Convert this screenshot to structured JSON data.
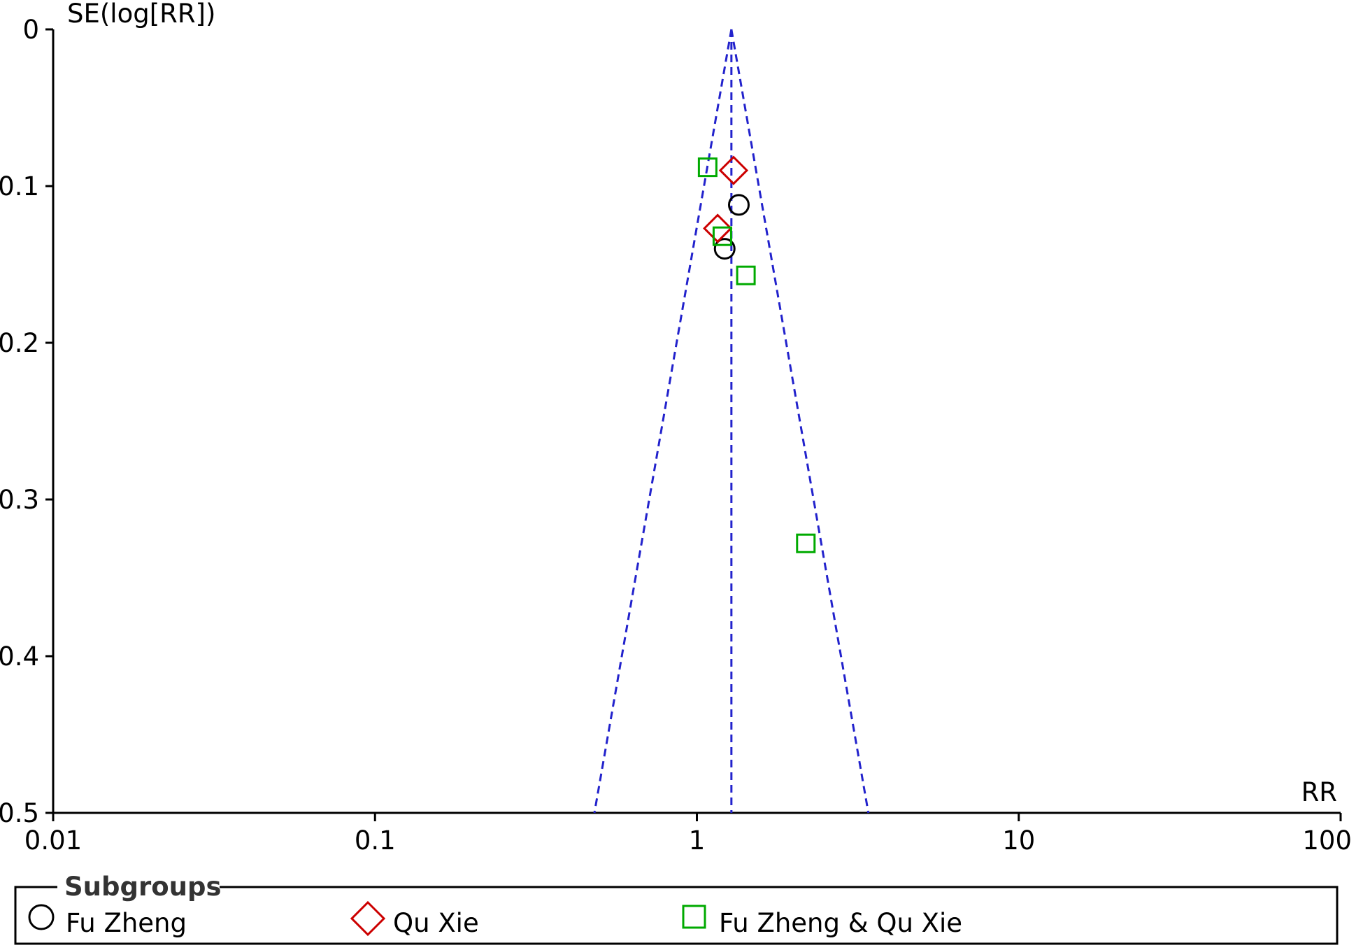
{
  "chart_data": {
    "type": "scatter",
    "title": "",
    "xlabel": "RR",
    "ylabel": "SE(log[RR])",
    "x_scale": "log",
    "xlim": [
      0.01,
      100
    ],
    "ylim": [
      0,
      0.5
    ],
    "y_inverted": true,
    "x_ticks": [
      "0.01",
      "0.1",
      "1",
      "10",
      "100"
    ],
    "x_tick_values": [
      0.01,
      0.1,
      1,
      10,
      100
    ],
    "y_ticks": [
      "0",
      "0.1",
      "0.2",
      "0.3",
      "0.4",
      "0.5"
    ],
    "y_tick_values": [
      0,
      0.1,
      0.2,
      0.3,
      0.4,
      0.5
    ],
    "grid": false,
    "pooled_estimate": 1.28,
    "funnel_color": "#2222cc",
    "legend": {
      "title": "Subgroups",
      "position": "bottom"
    },
    "series": [
      {
        "name": "Fu Zheng",
        "marker": "circle",
        "color": "#000000",
        "points": [
          {
            "x": 1.35,
            "y": 0.112
          },
          {
            "x": 1.22,
            "y": 0.14
          }
        ]
      },
      {
        "name": "Qu Xie",
        "marker": "diamond",
        "color": "#cc0000",
        "points": [
          {
            "x": 1.3,
            "y": 0.09
          },
          {
            "x": 1.16,
            "y": 0.127
          }
        ]
      },
      {
        "name": "Fu Zheng & Qu Xie",
        "marker": "square",
        "color": "#00aa00",
        "points": [
          {
            "x": 1.08,
            "y": 0.088
          },
          {
            "x": 1.2,
            "y": 0.132
          },
          {
            "x": 1.42,
            "y": 0.157
          },
          {
            "x": 2.18,
            "y": 0.328
          }
        ]
      }
    ]
  }
}
